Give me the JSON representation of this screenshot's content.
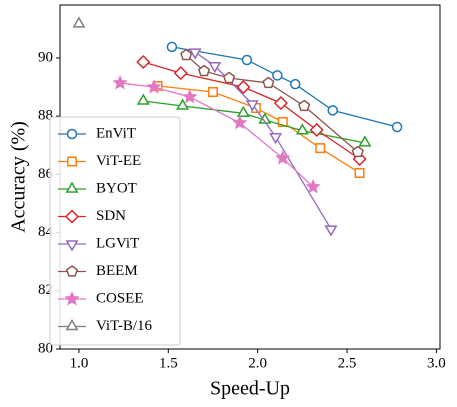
{
  "chart_data": {
    "type": "line",
    "x_label": "Speed-Up",
    "y_label": "Accuracy (%)",
    "xlim": [
      0.894,
      3.02
    ],
    "ylim": [
      80,
      91.82
    ],
    "xticks": [
      {
        "value": 1,
        "label": "1.0"
      },
      {
        "value": 1.5,
        "label": "1.5"
      },
      {
        "value": 2,
        "label": "2.0"
      },
      {
        "value": 2.5,
        "label": "2.5"
      },
      {
        "value": 3,
        "label": "3.0"
      }
    ],
    "yticks": [
      80,
      82,
      84,
      86,
      88,
      90
    ],
    "legend": "lower left",
    "series": [
      {
        "name": "EnViT",
        "color": "#1f77b4",
        "marker": "circle",
        "x": [
          1.52,
          1.94,
          2.11,
          2.21,
          2.42,
          2.78
        ],
        "values": [
          90.38,
          89.93,
          89.4,
          89.1,
          88.2,
          87.63
        ]
      },
      {
        "name": "ViT-EE",
        "color": "#ff7f0e",
        "marker": "square",
        "x": [
          1.44,
          1.75,
          1.99,
          2.14,
          2.35,
          2.57
        ],
        "values": [
          89.04,
          88.83,
          88.28,
          87.8,
          86.9,
          86.05
        ]
      },
      {
        "name": "BYOT",
        "color": "#2ca02c",
        "marker": "triangle",
        "x": [
          1.36,
          1.58,
          1.92,
          2.04,
          2.25,
          2.6
        ],
        "values": [
          88.52,
          88.35,
          88.1,
          87.87,
          87.5,
          87.08
        ]
      },
      {
        "name": "SDN",
        "color": "#d62728",
        "marker": "diamond",
        "x": [
          1.36,
          1.57,
          1.92,
          2.13,
          2.33,
          2.57
        ],
        "values": [
          89.86,
          89.48,
          89.0,
          88.45,
          87.53,
          86.53
        ]
      },
      {
        "name": "LGViT",
        "color": "#9467bd",
        "marker": "triangle-down",
        "x": [
          1.65,
          1.76,
          1.97,
          2.1,
          2.41
        ],
        "values": [
          90.2,
          89.73,
          88.42,
          87.29,
          84.12
        ]
      },
      {
        "name": "BEEM",
        "color": "#8c564b",
        "marker": "pentagon",
        "x": [
          1.6,
          1.7,
          1.84,
          2.06,
          2.26,
          2.56
        ],
        "values": [
          90.1,
          89.55,
          89.31,
          89.14,
          88.35,
          86.77
        ]
      },
      {
        "name": "COSEE",
        "color": "#e377c2",
        "marker": "star",
        "x": [
          1.23,
          1.42,
          1.62,
          1.9,
          2.14,
          2.31
        ],
        "values": [
          89.14,
          89.0,
          88.66,
          87.77,
          86.56,
          85.57
        ]
      },
      {
        "name": "ViT-B/16",
        "color": "#7f7f7f",
        "marker": "triangle",
        "x": [
          1.0
        ],
        "values": [
          91.17
        ]
      }
    ]
  }
}
